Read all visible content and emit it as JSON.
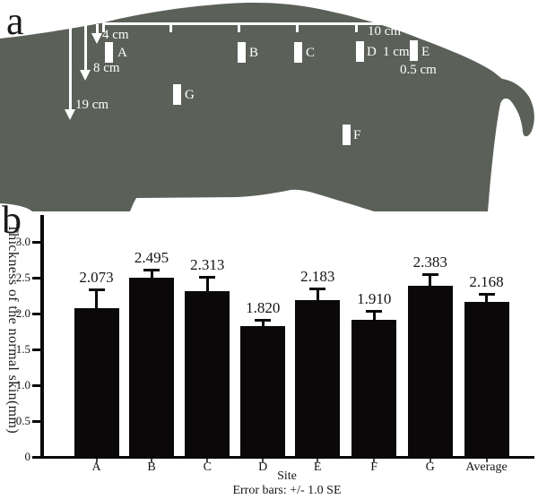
{
  "figure": {
    "panel_a_label": "a",
    "panel_b_label": "b"
  },
  "panel_a": {
    "pig_color": "#5b6058",
    "ruler_label": "10 cm",
    "depth_arrows": [
      {
        "label": "4 cm"
      },
      {
        "label": "8 cm"
      },
      {
        "label": "19 cm"
      }
    ],
    "sites": [
      {
        "label": "A"
      },
      {
        "label": "B"
      },
      {
        "label": "C"
      },
      {
        "label": "D"
      },
      {
        "label": "E"
      },
      {
        "label": "F"
      },
      {
        "label": "G"
      }
    ],
    "site_width_label": "1 cm",
    "site_height_label": "0.5 cm"
  },
  "chart_data": {
    "type": "bar",
    "title": "",
    "categories": [
      "A",
      "B",
      "C",
      "D",
      "E",
      "F",
      "G",
      "Average"
    ],
    "values": [
      2.073,
      2.495,
      2.313,
      1.82,
      2.183,
      1.91,
      2.383,
      2.168
    ],
    "value_labels": [
      "2.073",
      "2.495",
      "2.313",
      "1.820",
      "2.183",
      "1.910",
      "2.383",
      "2.168"
    ],
    "se": [
      0.25,
      0.11,
      0.19,
      0.08,
      0.15,
      0.12,
      0.16,
      0.09
    ],
    "xlabel": "Site",
    "ylabel": "Thickness of the normal skin(mm)",
    "footnote": "Error bars: +/- 1.0 SE",
    "ytick_labels": [
      "3.0",
      "2.5",
      "2.0",
      "1.5",
      "1.0",
      "0.5",
      "0"
    ],
    "yticks": [
      3.0,
      2.5,
      2.0,
      1.5,
      1.0,
      0.5,
      0
    ],
    "ylim": [
      0,
      3.3
    ],
    "grid": false,
    "legend": "none",
    "bar_color": "#0a0808"
  }
}
